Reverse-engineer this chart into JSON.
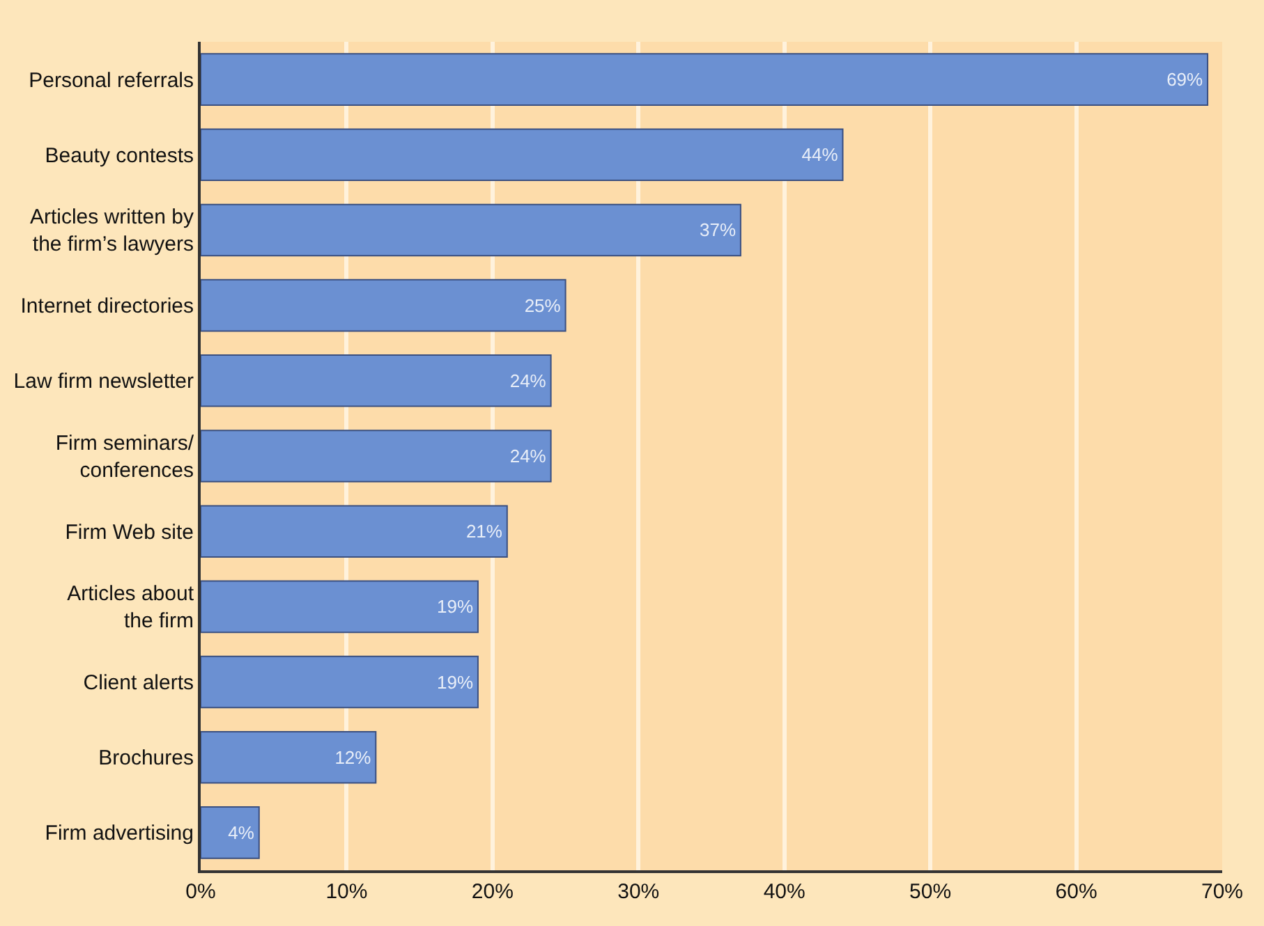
{
  "chart_data": {
    "type": "bar",
    "orientation": "horizontal",
    "categories": [
      "Personal referrals",
      "Beauty contests",
      "Articles written by\nthe firm’s lawyers",
      "Internet directories",
      "Law firm newsletter",
      "Firm seminars/\nconferences",
      "Firm Web site",
      "Articles about\nthe firm",
      "Client alerts",
      "Brochures",
      "Firm advertising"
    ],
    "values": [
      69,
      44,
      37,
      25,
      24,
      24,
      21,
      19,
      19,
      12,
      4
    ],
    "value_labels": [
      "69%",
      "44%",
      "37%",
      "25%",
      "24%",
      "24%",
      "21%",
      "19%",
      "19%",
      "12%",
      "4%"
    ],
    "color": "#6b90d2",
    "xlim": [
      0,
      70
    ],
    "xticks": [
      {
        "value": 0,
        "label": "0%"
      },
      {
        "value": 10,
        "label": "10%"
      },
      {
        "value": 20,
        "label": "20%"
      },
      {
        "value": 30,
        "label": "30%"
      },
      {
        "value": 40,
        "label": "40%"
      },
      {
        "value": 50,
        "label": "50%"
      },
      {
        "value": 60,
        "label": "60%"
      },
      {
        "value": 70,
        "label": "70%"
      }
    ],
    "grid": "x",
    "legend": false
  }
}
